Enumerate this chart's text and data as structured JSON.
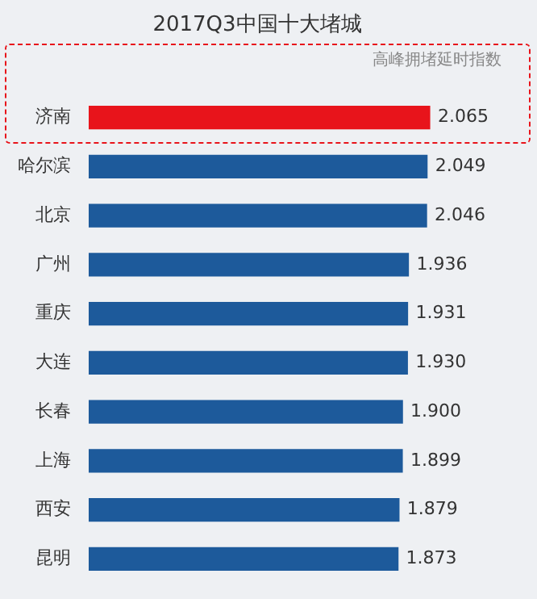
{
  "chart_data": {
    "type": "bar",
    "orientation": "horizontal",
    "title": "2017Q3中国十大堵城",
    "subtitle": "高峰拥堵延时指数",
    "categories": [
      "济南",
      "哈尔滨",
      "北京",
      "广州",
      "重庆",
      "大连",
      "长春",
      "上海",
      "西安",
      "昆明"
    ],
    "values": [
      2.065,
      2.049,
      2.046,
      1.936,
      1.931,
      1.93,
      1.9,
      1.899,
      1.879,
      1.873
    ],
    "colors": [
      "#e8141b",
      "#1d5a9b",
      "#1d5a9b",
      "#1d5a9b",
      "#1d5a9b",
      "#1d5a9b",
      "#1d5a9b",
      "#1d5a9b",
      "#1d5a9b",
      "#1d5a9b"
    ],
    "value_labels": [
      "2.065",
      "2.049",
      "2.046",
      "1.936",
      "1.931",
      "1.930",
      "1.900",
      "1.899",
      "1.879",
      "1.873"
    ],
    "legend": false,
    "tick_labels": "y"
  }
}
